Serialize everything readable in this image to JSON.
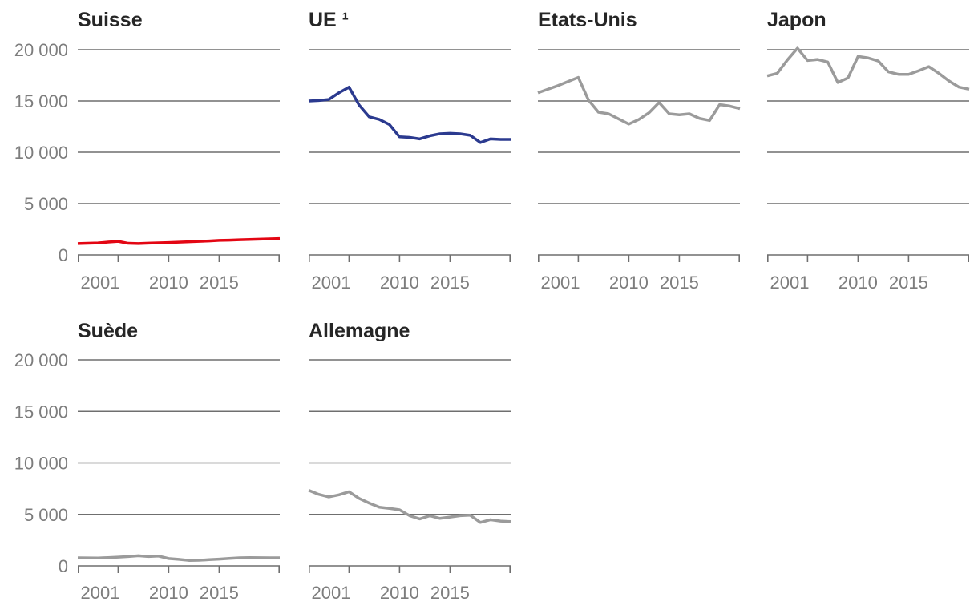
{
  "page": {
    "background": "#ffffff"
  },
  "chart_data": {
    "type": "line",
    "title": "",
    "xlabel": "",
    "ylabel": "",
    "x": [
      2001,
      2002,
      2003,
      2004,
      2005,
      2006,
      2007,
      2008,
      2009,
      2010,
      2011,
      2012,
      2013,
      2014,
      2015,
      2016,
      2017,
      2018,
      2019,
      2020,
      2021
    ],
    "ylim": [
      0,
      20000
    ],
    "yticks": [
      20000,
      15000,
      10000,
      5000,
      0
    ],
    "ytick_labels": [
      "20 000",
      "15 000",
      "10 000",
      "5 000",
      "0"
    ],
    "xticks": [
      2001,
      2005,
      2010,
      2015,
      2021
    ],
    "xtick_labels": [
      {
        "year": 2001,
        "label": "2001"
      },
      {
        "year": 2010,
        "label": "2010"
      },
      {
        "year": 2015,
        "label": "2015"
      }
    ],
    "grid": true,
    "legend_position": "none",
    "colors": {
      "suisse_line": "#e30613",
      "ue_line": "#2b3a8f",
      "gray_line": "#9b9b9b",
      "gridline": "#6f6f6f",
      "tick_label": "#7d7d7d",
      "panel_title": "#262626"
    },
    "panels": [
      {
        "title": "Suisse",
        "color_key": "suisse_line",
        "values": [
          1100,
          1130,
          1160,
          1250,
          1320,
          1130,
          1100,
          1140,
          1170,
          1200,
          1240,
          1280,
          1320,
          1360,
          1420,
          1440,
          1470,
          1500,
          1530,
          1560,
          1590
        ]
      },
      {
        "title": "UE ¹",
        "color_key": "ue_line",
        "values": [
          15000,
          15050,
          15150,
          15800,
          16350,
          14600,
          13450,
          13200,
          12700,
          11500,
          11450,
          11300,
          11600,
          11800,
          11850,
          11800,
          11650,
          10950,
          11300,
          11250,
          11250
        ]
      },
      {
        "title": "Etats-Unis",
        "color_key": "gray_line",
        "values": [
          15800,
          16150,
          16500,
          16900,
          17300,
          15100,
          13900,
          13750,
          13250,
          12750,
          13200,
          13850,
          14850,
          13750,
          13650,
          13750,
          13300,
          13100,
          14650,
          14500,
          14250
        ]
      },
      {
        "title": "Japon",
        "color_key": "gray_line",
        "values": [
          17450,
          17700,
          19000,
          20150,
          18950,
          19050,
          18800,
          16800,
          17250,
          19350,
          19200,
          18900,
          17850,
          17600,
          17600,
          17950,
          18350,
          17700,
          16950,
          16350,
          16150
        ]
      },
      {
        "title": "Suède",
        "color_key": "gray_line",
        "values": [
          780,
          770,
          760,
          800,
          850,
          900,
          980,
          900,
          950,
          710,
          630,
          530,
          540,
          600,
          650,
          720,
          780,
          800,
          790,
          780,
          780
        ]
      },
      {
        "title": "Allemagne",
        "color_key": "gray_line",
        "values": [
          7340,
          6950,
          6700,
          6900,
          7200,
          6550,
          6100,
          5700,
          5580,
          5450,
          4870,
          4560,
          4870,
          4610,
          4740,
          4870,
          4920,
          4220,
          4480,
          4350,
          4300
        ]
      }
    ]
  }
}
